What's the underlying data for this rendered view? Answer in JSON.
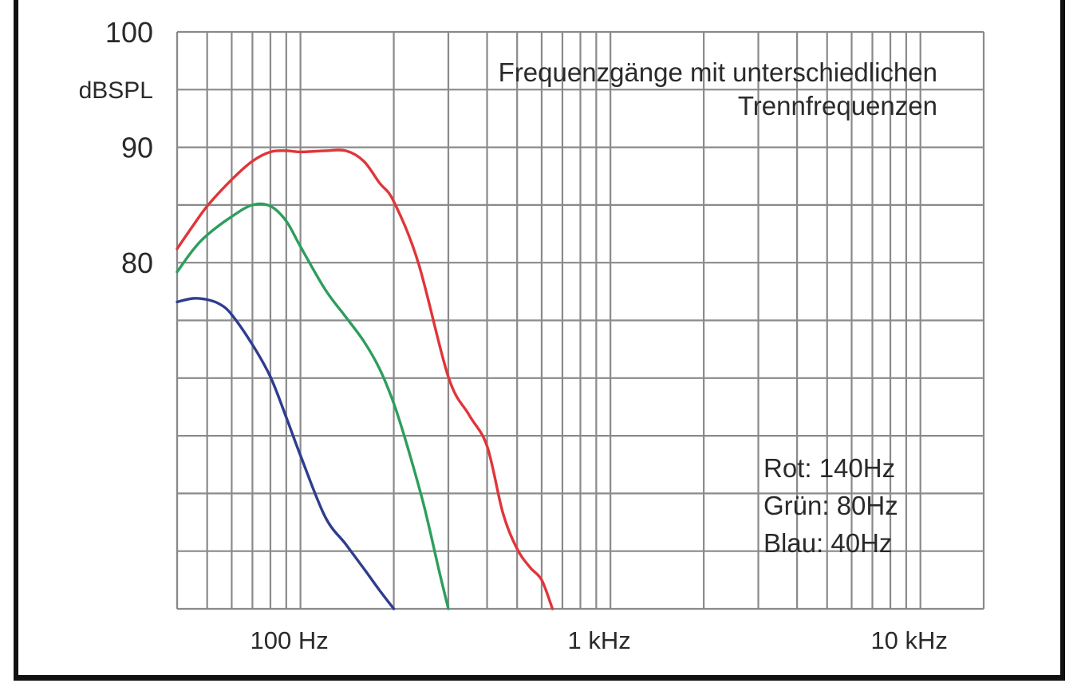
{
  "chart_data": {
    "type": "line",
    "title": "Frequenzgänge mit unterschiedlichen",
    "subtitle": "Trennfrequenzen",
    "xscale": "log",
    "xlim": [
      40,
      16000
    ],
    "ylim": [
      50,
      100
    ],
    "grid": true,
    "y_unit": "dBSPL",
    "y_ticks": [
      {
        "value": 100,
        "label": "100"
      },
      {
        "value": 90,
        "label": "90"
      },
      {
        "value": 80,
        "label": "80"
      }
    ],
    "x_ticks": [
      {
        "value": 100,
        "label": "100 Hz"
      },
      {
        "value": 1000,
        "label": "1 kHz"
      },
      {
        "value": 10000,
        "label": "10 kHz"
      }
    ],
    "legend": [
      "Rot: 140Hz",
      "Grün: 80Hz",
      "Blau: 40Hz"
    ],
    "series": [
      {
        "color": "#e0353a",
        "x": [
          40,
          45,
          50,
          60,
          70,
          80,
          90,
          100,
          120,
          140,
          160,
          180,
          200,
          240,
          300,
          350,
          400,
          450,
          500,
          550,
          600,
          650
        ],
        "y": [
          81.2,
          83.2,
          84.9,
          87.2,
          88.8,
          89.6,
          89.7,
          89.6,
          89.7,
          89.7,
          88.8,
          86.9,
          85.3,
          80.0,
          70.1,
          66.8,
          64.1,
          58.3,
          55.2,
          53.6,
          52.5,
          50.0
        ]
      },
      {
        "color": "#2d9e5c",
        "x": [
          40,
          45,
          50,
          60,
          70,
          80,
          90,
          100,
          120,
          140,
          160,
          180,
          200,
          220,
          250,
          280,
          300
        ],
        "y": [
          79.2,
          81.1,
          82.4,
          84.0,
          85.0,
          84.9,
          83.6,
          81.4,
          77.7,
          75.3,
          73.2,
          70.8,
          67.8,
          64.3,
          59.0,
          53.3,
          50.0
        ]
      },
      {
        "color": "#2f3d8e",
        "x": [
          40,
          45,
          50,
          55,
          60,
          70,
          80,
          90,
          100,
          120,
          140,
          160,
          180,
          200
        ],
        "y": [
          76.6,
          76.9,
          76.8,
          76.4,
          75.5,
          72.9,
          70.1,
          66.6,
          63.3,
          58.0,
          55.6,
          53.5,
          51.6,
          50.0
        ]
      }
    ]
  }
}
